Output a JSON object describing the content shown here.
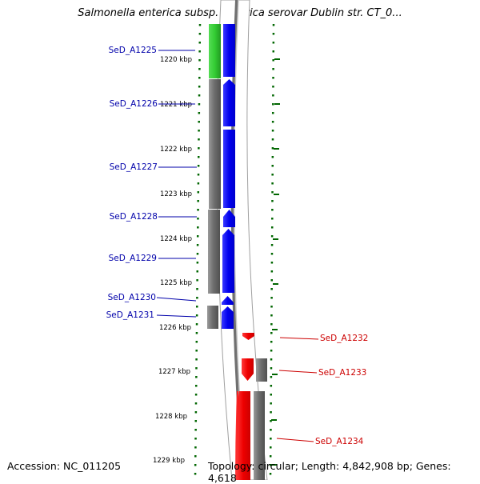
{
  "title": "Salmonella enterica subsp. enterica serovar Dublin str. CT_0...",
  "footer": {
    "accession": "Accession: NC_011205",
    "summary": "Topology: circular; Length: 4,842,908 bp; Genes: 4,618"
  },
  "colors": {
    "forward_cds": "#0000ff",
    "reverse_cds": "#ff0000",
    "highlight_cds": "#33cc33",
    "genome_track": "#808080",
    "tick_dots": "#006600",
    "forward_label": "#0000aa",
    "reverse_label": "#cc0000"
  },
  "ticks": [
    {
      "label": "1220 kbp"
    },
    {
      "label": "1221 kbp"
    },
    {
      "label": "1222 kbp"
    },
    {
      "label": "1223 kbp"
    },
    {
      "label": "1224 kbp"
    },
    {
      "label": "1225 kbp"
    },
    {
      "label": "1226 kbp"
    },
    {
      "label": "1227 kbp"
    },
    {
      "label": "1228 kbp"
    },
    {
      "label": "1229 kbp"
    }
  ],
  "genes_left": [
    {
      "name": "SeD_A1225",
      "strand": "forward",
      "highlight": true
    },
    {
      "name": "SeD_A1226",
      "strand": "forward"
    },
    {
      "name": "SeD_A1227",
      "strand": "forward"
    },
    {
      "name": "SeD_A1228",
      "strand": "forward"
    },
    {
      "name": "SeD_A1229",
      "strand": "forward"
    },
    {
      "name": "SeD_A1230",
      "strand": "forward"
    },
    {
      "name": "SeD_A1231",
      "strand": "forward"
    }
  ],
  "genes_right": [
    {
      "name": "SeD_A1232",
      "strand": "reverse"
    },
    {
      "name": "SeD_A1233",
      "strand": "reverse"
    },
    {
      "name": "SeD_A1234",
      "strand": "reverse"
    }
  ]
}
